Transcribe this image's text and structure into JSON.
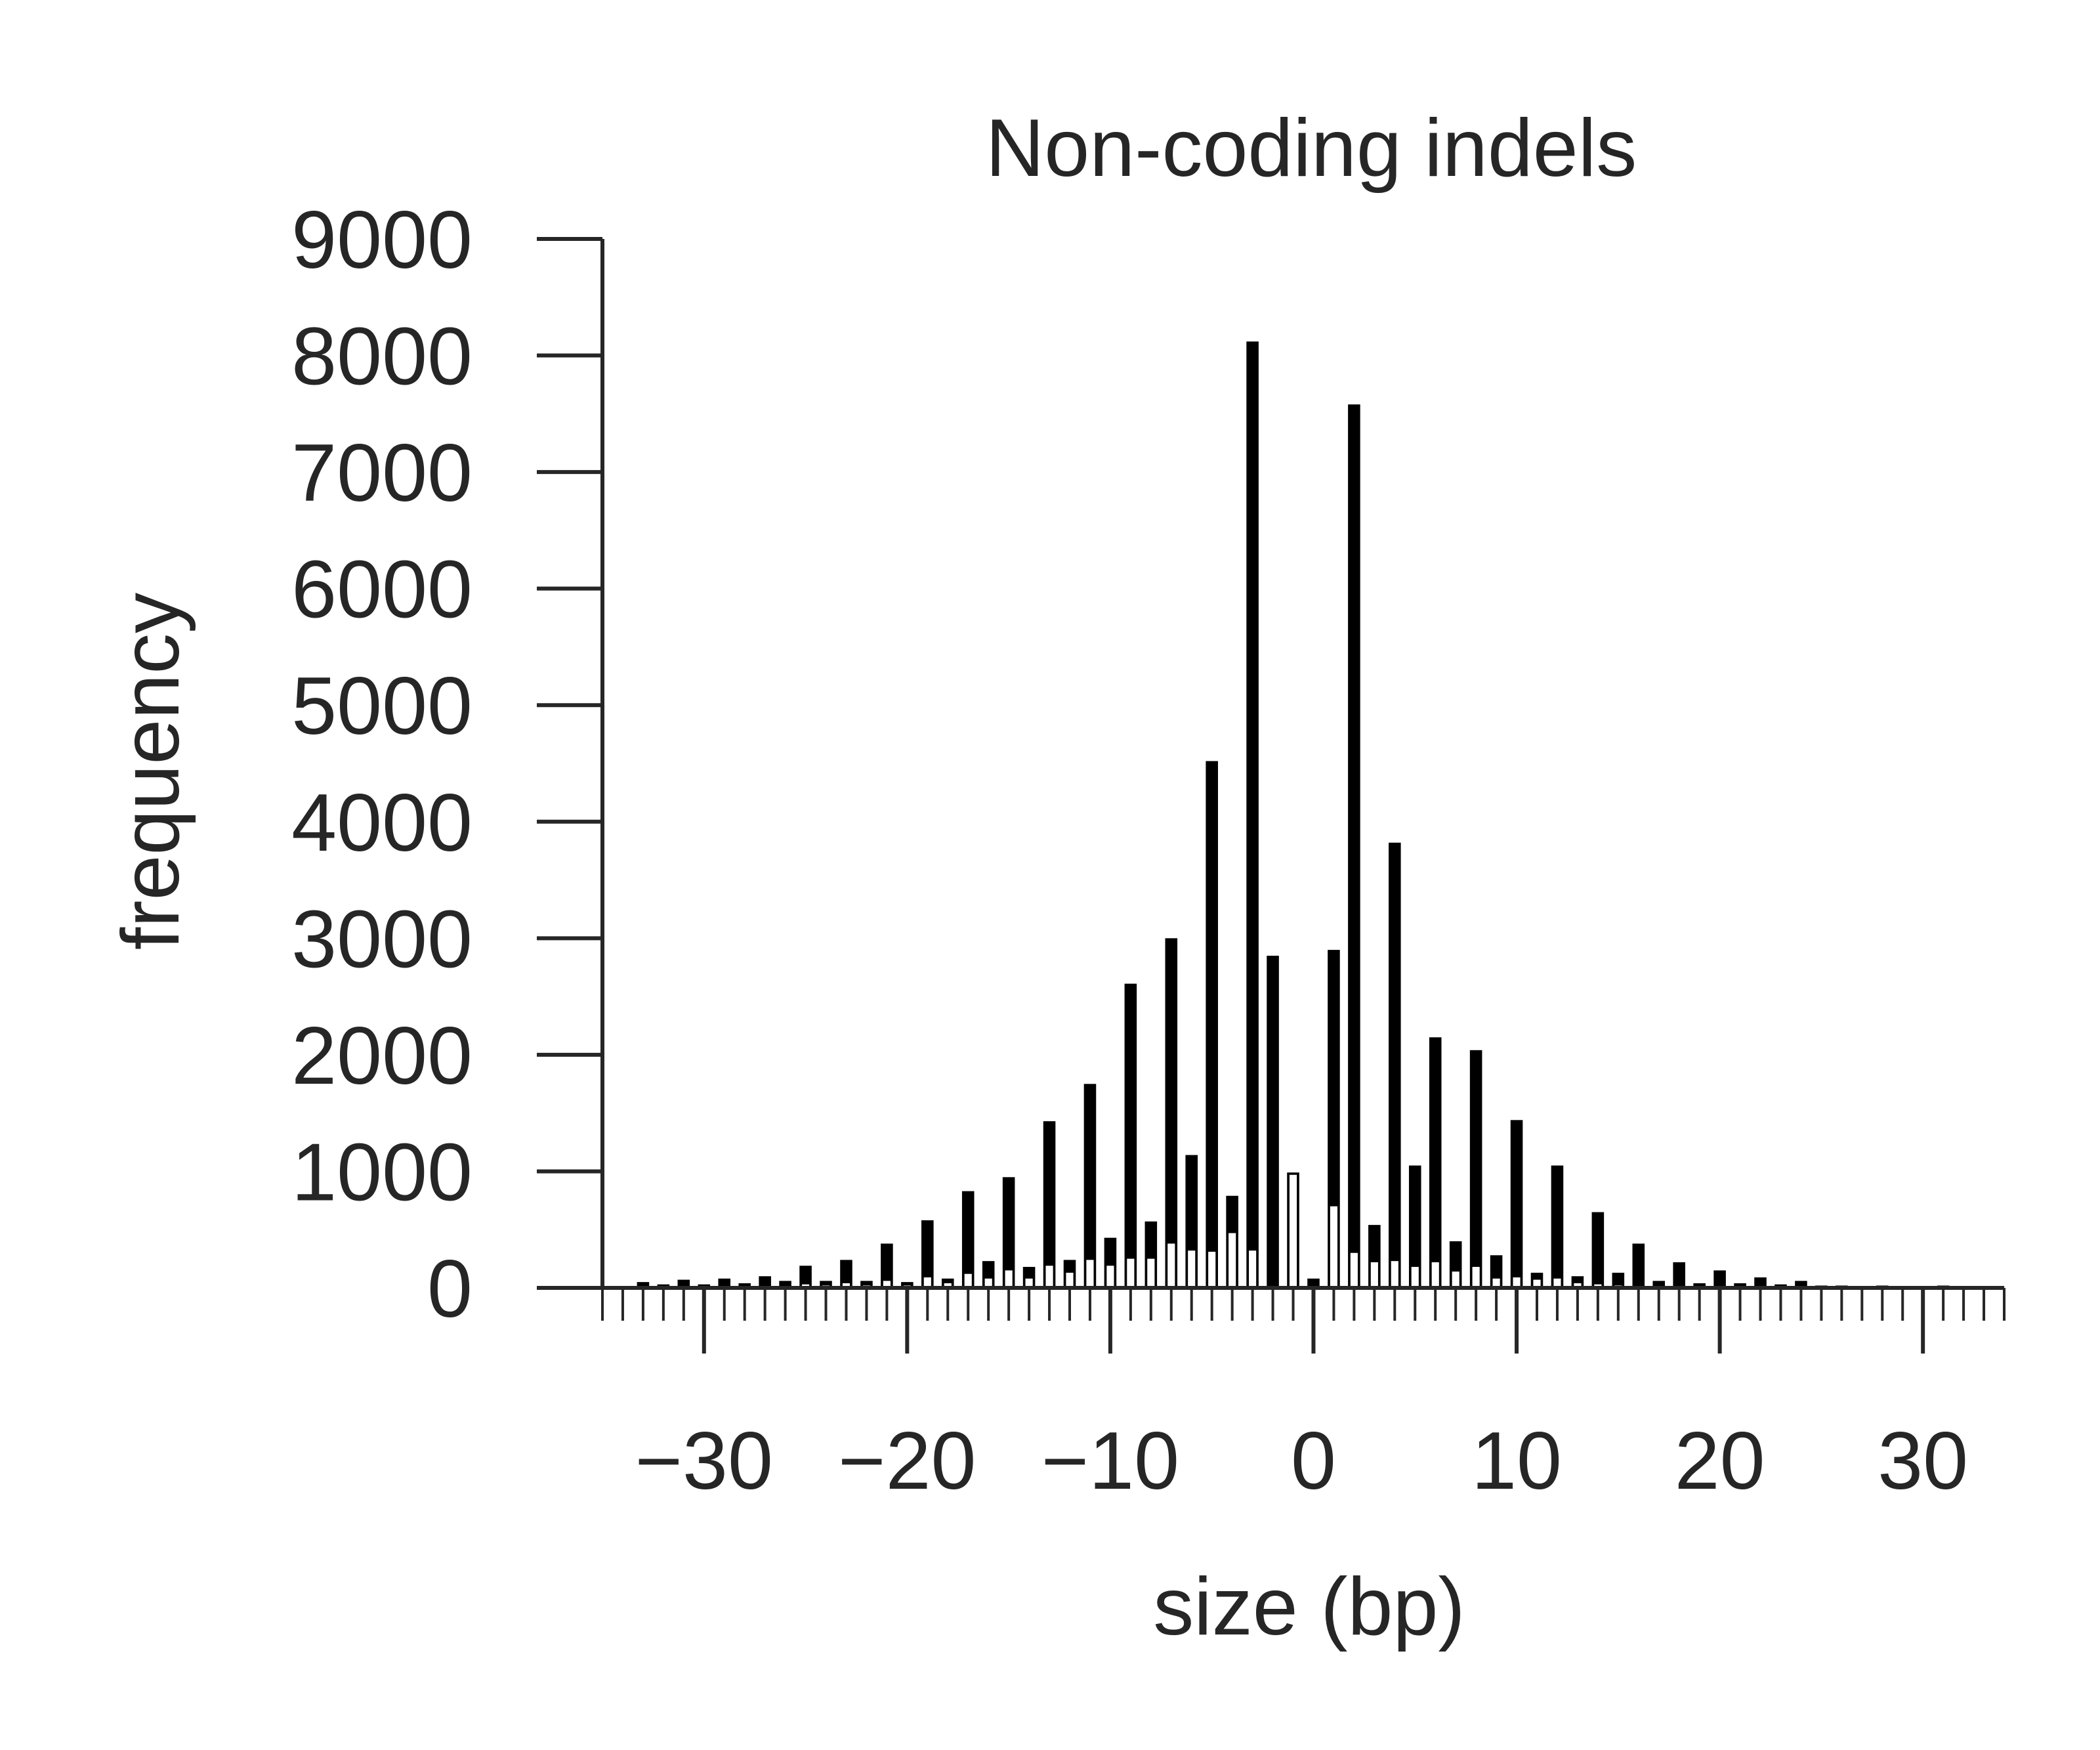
{
  "chart_data": {
    "type": "bar",
    "title": "Non-coding indels",
    "xlabel": "size (bp)",
    "ylabel": "frequency",
    "xlim": [
      -35,
      34
    ],
    "ylim": [
      0,
      9000
    ],
    "yticks": [
      0,
      1000,
      2000,
      3000,
      4000,
      5000,
      6000,
      7000,
      8000,
      9000
    ],
    "ytick_labels": [
      "0",
      "1000",
      "2000",
      "3000",
      "4000",
      "5000",
      "6000",
      "7000",
      "8000",
      "9000"
    ],
    "xticks": [
      -30,
      -20,
      -10,
      0,
      10,
      20,
      30
    ],
    "xtick_labels": [
      "−30",
      "−20",
      "−10",
      "0",
      "10",
      "20",
      "30"
    ],
    "x_minor_tick_step": 1,
    "grid": false,
    "colors": {
      "primary": "#000000",
      "secondary": "#ffffff",
      "axis": "#262626"
    },
    "series": [
      {
        "color": "#000000",
        "x": [
          -34,
          -33,
          -32,
          -31,
          -30,
          -29,
          -28,
          -27,
          -26,
          -25,
          -24,
          -23,
          -22,
          -21,
          -20,
          -19,
          -18,
          -17,
          -16,
          -15,
          -14,
          -13,
          -12,
          -11,
          -10,
          -9,
          -8,
          -7,
          -6,
          -5,
          -4,
          -3,
          -2,
          -1,
          0,
          1,
          2,
          3,
          4,
          5,
          6,
          7,
          8,
          9,
          10,
          11,
          12,
          13,
          14,
          15,
          16,
          17,
          18,
          19,
          20,
          21,
          22,
          23,
          24,
          25,
          26,
          27,
          28,
          29,
          30,
          31,
          32,
          33
        ],
        "values": [
          10,
          50,
          30,
          70,
          30,
          80,
          40,
          100,
          60,
          190,
          60,
          240,
          60,
          380,
          50,
          580,
          80,
          830,
          230,
          950,
          180,
          1430,
          240,
          1750,
          430,
          2610,
          570,
          3000,
          1140,
          4520,
          790,
          8120,
          2850,
          990,
          80,
          2900,
          7580,
          540,
          3820,
          1050,
          2150,
          400,
          2040,
          280,
          1440,
          130,
          1050,
          100,
          650,
          130,
          380,
          60,
          220,
          40,
          150,
          40,
          90,
          30,
          60,
          20,
          20,
          10,
          20,
          10,
          15,
          20,
          10,
          10
        ]
      },
      {
        "color": "#ffffff",
        "x": [
          -34,
          -33,
          -32,
          -31,
          -30,
          -29,
          -28,
          -27,
          -26,
          -25,
          -24,
          -23,
          -22,
          -21,
          -20,
          -19,
          -18,
          -17,
          -16,
          -15,
          -14,
          -13,
          -12,
          -11,
          -10,
          -9,
          -8,
          -7,
          -6,
          -5,
          -4,
          -3,
          -2,
          -1,
          0,
          1,
          2,
          3,
          4,
          5,
          6,
          7,
          8,
          9,
          10,
          11,
          12,
          13,
          14,
          15,
          16,
          17,
          18,
          19,
          20,
          21,
          22,
          23,
          24,
          25,
          26,
          27,
          28,
          29,
          30,
          31,
          32,
          33
        ],
        "values": [
          0,
          0,
          0,
          0,
          0,
          0,
          0,
          0,
          5,
          30,
          20,
          40,
          20,
          60,
          20,
          90,
          40,
          120,
          80,
          150,
          80,
          190,
          130,
          240,
          190,
          250,
          250,
          380,
          320,
          310,
          470,
          320,
          0,
          970,
          0,
          700,
          300,
          220,
          230,
          180,
          220,
          140,
          180,
          80,
          90,
          70,
          80,
          40,
          30,
          20,
          0,
          0,
          0,
          0,
          0,
          0,
          0,
          0,
          0,
          0,
          0,
          0,
          0,
          0,
          0,
          0,
          0,
          0
        ]
      }
    ]
  }
}
